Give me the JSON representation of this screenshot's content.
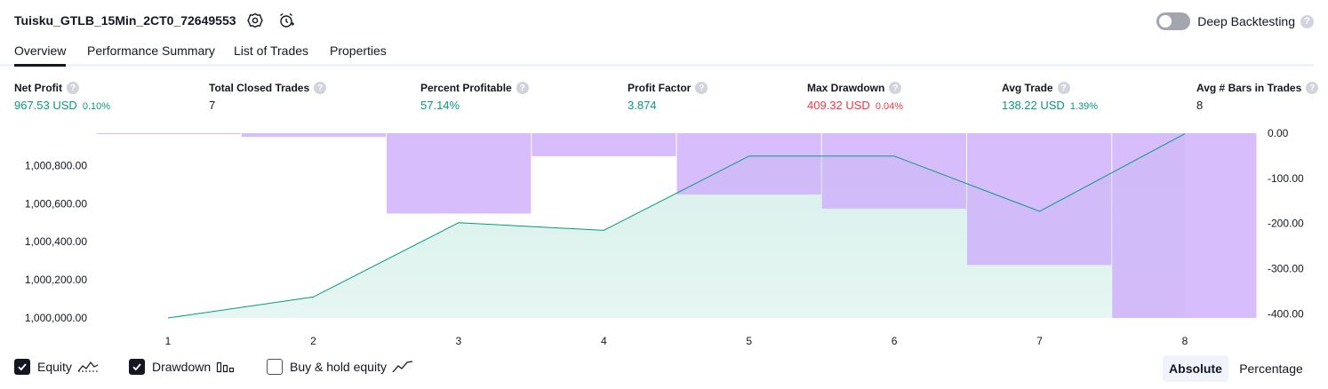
{
  "header": {
    "strategy_name": "Tuisku_GTLB_15Min_2CT0_72649553",
    "deep_backtesting_label": "Deep Backtesting",
    "help_glyph": "?"
  },
  "tabs": [
    {
      "label": "Overview",
      "active": true
    },
    {
      "label": "Performance Summary",
      "active": false
    },
    {
      "label": "List of Trades",
      "active": false
    },
    {
      "label": "Properties",
      "active": false
    }
  ],
  "metrics": [
    {
      "label": "Net Profit",
      "value": "967.53 USD",
      "pct": "0.10%",
      "color": "green"
    },
    {
      "label": "Total Closed Trades",
      "value": "7",
      "pct": "",
      "color": "dark"
    },
    {
      "label": "Percent Profitable",
      "value": "57.14%",
      "pct": "",
      "color": "green"
    },
    {
      "label": "Profit Factor",
      "value": "3.874",
      "pct": "",
      "color": "green"
    },
    {
      "label": "Max Drawdown",
      "value": "409.32 USD",
      "pct": "0.04%",
      "color": "red"
    },
    {
      "label": "Avg Trade",
      "value": "138.22 USD",
      "pct": "1.39%",
      "color": "green"
    },
    {
      "label": "Avg # Bars in Trades",
      "value": "8",
      "pct": "",
      "color": "dark"
    }
  ],
  "chart_data": {
    "type": "area",
    "x": [
      1,
      2,
      3,
      4,
      5,
      6,
      7,
      8
    ],
    "x_tick_labels": [
      "1",
      "2",
      "3",
      "4",
      "5",
      "6",
      "7",
      "8"
    ],
    "left_axis": {
      "ticks": [
        1000000,
        1000200,
        1000400,
        1000600,
        1000800
      ],
      "tick_labels": [
        "1,000,000.00",
        "1,000,200.00",
        "1,000,400.00",
        "1,000,600.00",
        "1,000,800.00"
      ],
      "ylim": [
        1000000,
        1000970
      ]
    },
    "right_axis": {
      "ticks": [
        0,
        -100,
        -200,
        -300,
        -400
      ],
      "tick_labels": [
        "0.00",
        "-100.00",
        "-200.00",
        "-300.00",
        "-400.00"
      ],
      "ylim": [
        -409.32,
        0
      ]
    },
    "series": [
      {
        "name": "Equity",
        "values": [
          1000000,
          1000110,
          1000500,
          1000460,
          1000850,
          1000850,
          1000560,
          1000967.53
        ],
        "color": "#089981",
        "fill": "#d6f0ea"
      },
      {
        "name": "Drawdown",
        "bars": [
          {
            "from": 0.5,
            "to": 1.5,
            "value": -1
          },
          {
            "from": 1.5,
            "to": 2.5,
            "value": -8
          },
          {
            "from": 2.5,
            "to": 3.5,
            "value": -178
          },
          {
            "from": 3.5,
            "to": 4.5,
            "value": -51
          },
          {
            "from": 4.5,
            "to": 5.5,
            "value": -136
          },
          {
            "from": 5.5,
            "to": 6.5,
            "value": -167
          },
          {
            "from": 6.5,
            "to": 7.5,
            "value": -292
          },
          {
            "from": 7.5,
            "to": 8.5,
            "value": -409.32
          }
        ],
        "color": "#ceadfb"
      }
    ]
  },
  "footer": {
    "legend": [
      {
        "label": "Equity",
        "checked": true
      },
      {
        "label": "Drawdown",
        "checked": true
      },
      {
        "label": "Buy & hold equity",
        "checked": false
      }
    ],
    "absolute_label": "Absolute",
    "percentage_label": "Percentage"
  },
  "colors": {
    "accent_text": "#131722",
    "profit_green": "#089981",
    "loss_red": "#f23645",
    "drawdown_purple": "#ceadfb",
    "equity_fill": "#d6f0ea"
  }
}
